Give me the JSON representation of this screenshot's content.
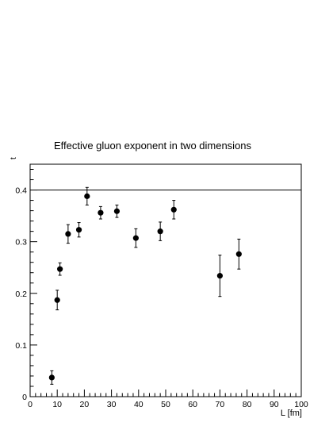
{
  "chart_data": {
    "type": "scatter",
    "title": "Effective gluon exponent in two dimensions",
    "xlabel": "L [fm]",
    "ylabel": "t",
    "xlim": [
      0,
      100
    ],
    "ylim": [
      0,
      0.45
    ],
    "xticks": [
      0,
      10,
      20,
      30,
      40,
      50,
      60,
      70,
      80,
      90,
      100
    ],
    "yticks": [
      0,
      0.1,
      0.2,
      0.3,
      0.4
    ],
    "xtick_labels": [
      "0",
      "10",
      "20",
      "30",
      "40",
      "50",
      "60",
      "70",
      "80",
      "90",
      "100"
    ],
    "ytick_labels": [
      "0",
      "0.1",
      "0.2",
      "0.3",
      "0.4"
    ],
    "reference_line": 0.4,
    "grid": false,
    "points": [
      {
        "x": 8,
        "y": 0.037,
        "err": 0.013
      },
      {
        "x": 10,
        "y": 0.187,
        "err": 0.019
      },
      {
        "x": 11,
        "y": 0.247,
        "err": 0.012
      },
      {
        "x": 14,
        "y": 0.315,
        "err": 0.018
      },
      {
        "x": 18,
        "y": 0.323,
        "err": 0.014
      },
      {
        "x": 21,
        "y": 0.388,
        "err": 0.017
      },
      {
        "x": 26,
        "y": 0.356,
        "err": 0.012
      },
      {
        "x": 32,
        "y": 0.359,
        "err": 0.012
      },
      {
        "x": 39,
        "y": 0.307,
        "err": 0.018
      },
      {
        "x": 48,
        "y": 0.32,
        "err": 0.018
      },
      {
        "x": 53,
        "y": 0.362,
        "err": 0.018
      },
      {
        "x": 70,
        "y": 0.234,
        "err": 0.04
      },
      {
        "x": 77,
        "y": 0.276,
        "err": 0.029
      }
    ]
  }
}
